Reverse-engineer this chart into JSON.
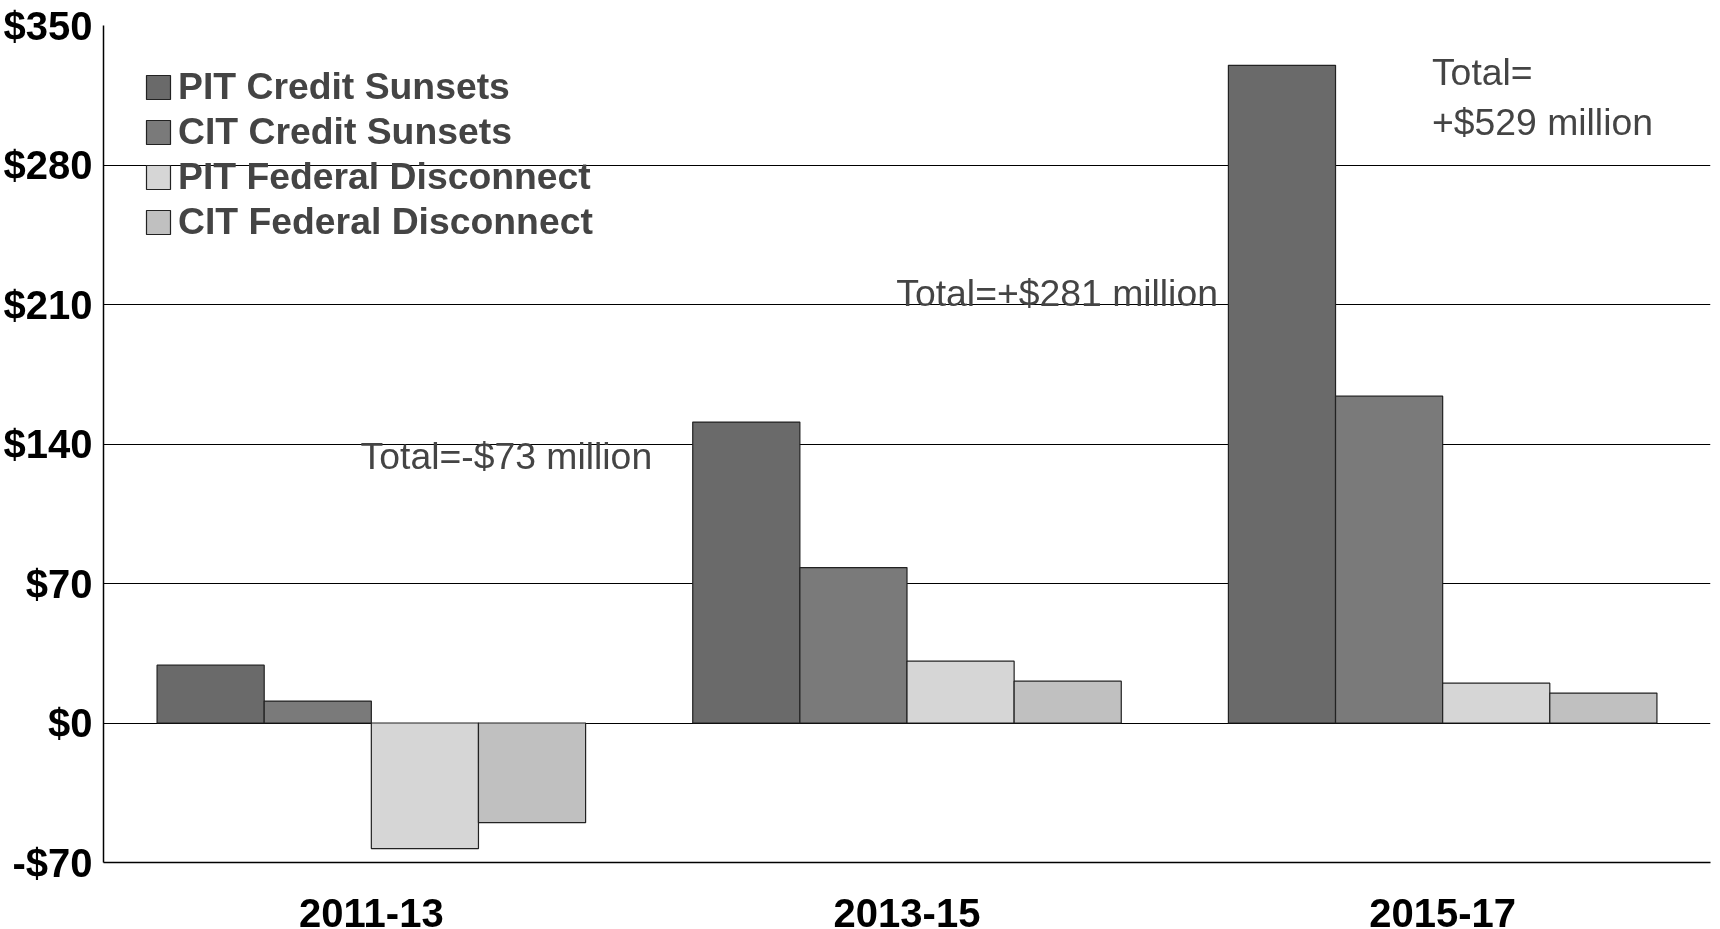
{
  "chart_data": {
    "type": "bar",
    "categories": [
      "2011-13",
      "2013-15",
      "2015-17"
    ],
    "series": [
      {
        "name": "PIT Credit Sunsets",
        "color": "#6a6a6a",
        "values": [
          29,
          151,
          330
        ]
      },
      {
        "name": "CIT Credit Sunsets",
        "color": "#7a7a7a",
        "values": [
          11,
          78,
          164
        ]
      },
      {
        "name": "PIT Federal Disconnect",
        "color": "#d6d6d6",
        "values": [
          -63,
          31,
          20
        ]
      },
      {
        "name": "CIT Federal Disconnect",
        "color": "#c0c0c0",
        "values": [
          -50,
          21,
          15
        ]
      }
    ],
    "ylim": [
      -70,
      350
    ],
    "yticks": [
      {
        "value": -70,
        "label": "-$70"
      },
      {
        "value": 0,
        "label": "$0"
      },
      {
        "value": 70,
        "label": "$70"
      },
      {
        "value": 140,
        "label": "$140"
      },
      {
        "value": 210,
        "label": "$210"
      },
      {
        "value": 280,
        "label": "$280"
      },
      {
        "value": 350,
        "label": "$350"
      }
    ],
    "grid": "y",
    "legend": "top left",
    "annotations": [
      "Total=-$73 million",
      "Total=+$281 million",
      "Total=\n+$529 million"
    ]
  }
}
